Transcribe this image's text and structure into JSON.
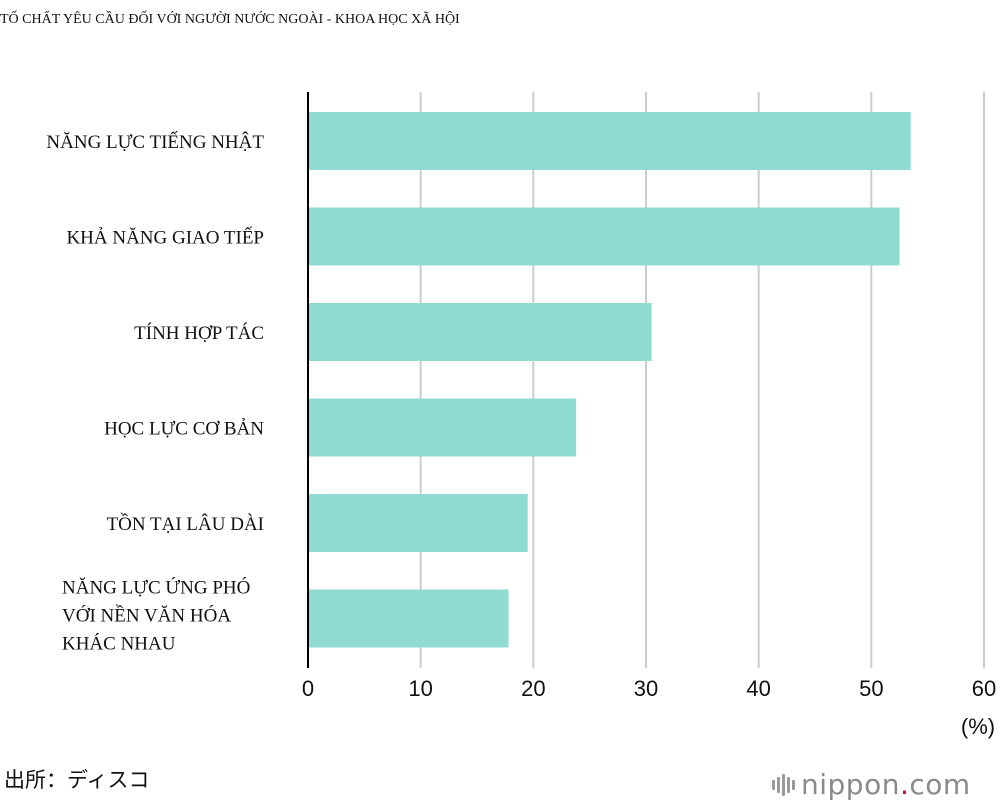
{
  "title": "TỐ CHẤT YÊU CẦU ĐỐI VỚI NGƯỜI NƯỚC NGOÀI - KHOA HỌC XÃ HỘI",
  "source": "出所：ディスコ",
  "logo": {
    "name": "nippon",
    "dot": ".",
    "domain": "com"
  },
  "colors": {
    "bar": "#90dbd0",
    "grid": "#cccccc",
    "axis": "#000000"
  },
  "chart_data": {
    "type": "bar",
    "orientation": "horizontal",
    "categories": [
      [
        "NĂNG LỰC TIẾNG NHẬT"
      ],
      [
        "KHẢ NĂNG GIAO TIẾP"
      ],
      [
        "TÍNH HỢP TÁC"
      ],
      [
        "HỌC LỰC CƠ BẢN"
      ],
      [
        "TỒN TẠI LÂU DÀI"
      ],
      [
        "NĂNG LỰC ỨNG PHÓ",
        "VỚI NỀN VĂN HÓA",
        "KHÁC NHAU"
      ]
    ],
    "values": [
      53.5,
      52.5,
      30.5,
      23.8,
      19.5,
      17.8
    ],
    "xlim": [
      0,
      60
    ],
    "xticks": [
      "0",
      "10",
      "20",
      "30",
      "40",
      "50",
      "60"
    ],
    "xunit": "(%)",
    "grid": true
  }
}
